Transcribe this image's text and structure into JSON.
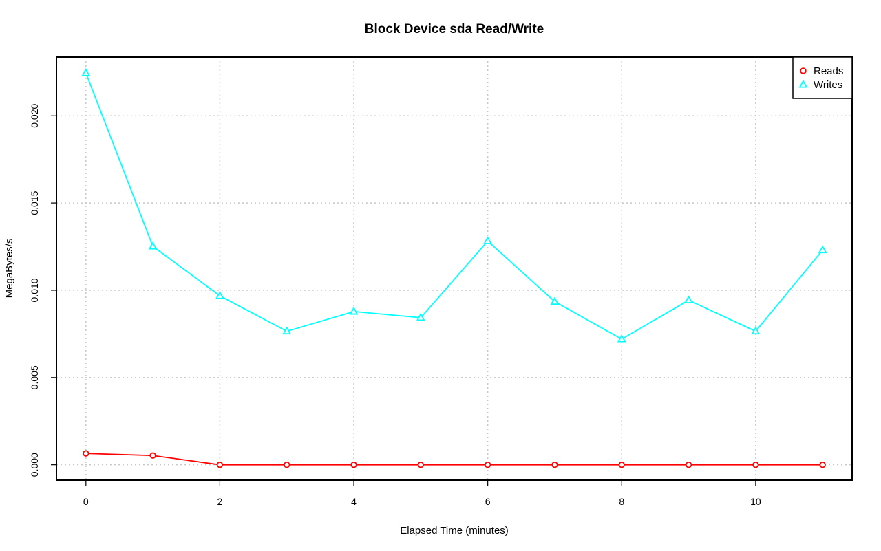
{
  "chart_data": {
    "type": "line",
    "title": "Block Device sda Read/Write",
    "xlabel": "Elapsed Time (minutes)",
    "ylabel": "MegaBytes/s",
    "x": [
      0,
      1,
      2,
      3,
      4,
      5,
      6,
      7,
      8,
      9,
      10,
      11
    ],
    "xlim": [
      -0.44,
      11.44
    ],
    "ylim": [
      -0.00088,
      0.02336
    ],
    "xticks": [
      0,
      2,
      4,
      6,
      8,
      10
    ],
    "xtick_labels": [
      "0",
      "2",
      "4",
      "6",
      "8",
      "10"
    ],
    "yticks": [
      0.0,
      0.005,
      0.01,
      0.015,
      0.02
    ],
    "ytick_labels": [
      "0.000",
      "0.005",
      "0.010",
      "0.015",
      "0.020"
    ],
    "grid": true,
    "legend_position": "top-right",
    "series": [
      {
        "name": "Reads",
        "color": "#ff0000",
        "marker": "circle",
        "values": [
          0.00065,
          0.00053,
          0.0,
          0.0,
          0.0,
          0.0,
          0.0,
          0.0,
          0.0,
          0.0,
          0.0,
          0.0
        ]
      },
      {
        "name": "Writes",
        "color": "#00ffff",
        "marker": "triangle",
        "values": [
          0.02245,
          0.01252,
          0.00968,
          0.00765,
          0.00878,
          0.00843,
          0.01282,
          0.00935,
          0.0072,
          0.00943,
          0.00765,
          0.0123
        ]
      }
    ]
  }
}
